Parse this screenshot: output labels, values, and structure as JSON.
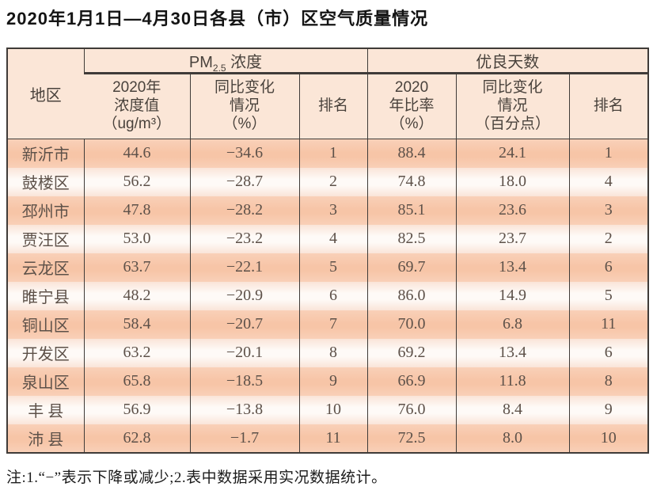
{
  "page": {
    "title": "2020年1月1日—4月30日各县（市）区空气质量情况",
    "footnote": "注:1.“−”表示下降或减少;2.表中数据采用实况数据统计。"
  },
  "colors": {
    "row_salmon": "#f8c9ad",
    "row_light": "#fefaf7",
    "row_light_edge": "#fae4d8",
    "header_bg": "#fbe6d7",
    "border": "#3f3b38",
    "title_text": "#141414",
    "header_text": "#49423c",
    "cell_text": "#5d5149"
  },
  "table": {
    "header": {
      "region": "地区",
      "pm_group": {
        "prefix": "PM",
        "sub": "2.5",
        "suffix": " 浓度"
      },
      "days_group": "优良天数",
      "pm_value": [
        "2020年",
        "浓度值",
        "（ug/m³）"
      ],
      "pm_change": [
        "同比变化",
        "情况",
        "（%）"
      ],
      "pm_rank": "排名",
      "days_rate": [
        "2020",
        "年比率",
        "（%）"
      ],
      "days_change": [
        "同比变化",
        "情况",
        "（百分点）"
      ],
      "days_rank": "排名"
    },
    "rows": [
      {
        "region": "新沂市",
        "pm_value": "44.6",
        "pm_change": "−34.6",
        "pm_rank": "1",
        "days_rate": "88.4",
        "days_change": "24.1",
        "days_rank": "1"
      },
      {
        "region": "鼓楼区",
        "pm_value": "56.2",
        "pm_change": "−28.7",
        "pm_rank": "2",
        "days_rate": "74.8",
        "days_change": "18.0",
        "days_rank": "4"
      },
      {
        "region": "邳州市",
        "pm_value": "47.8",
        "pm_change": "−28.2",
        "pm_rank": "3",
        "days_rate": "85.1",
        "days_change": "23.6",
        "days_rank": "3"
      },
      {
        "region": "贾汪区",
        "pm_value": "53.0",
        "pm_change": "−23.2",
        "pm_rank": "4",
        "days_rate": "82.5",
        "days_change": "23.7",
        "days_rank": "2"
      },
      {
        "region": "云龙区",
        "pm_value": "63.7",
        "pm_change": "−22.1",
        "pm_rank": "5",
        "days_rate": "69.7",
        "days_change": "13.4",
        "days_rank": "6"
      },
      {
        "region": "睢宁县",
        "pm_value": "48.2",
        "pm_change": "−20.9",
        "pm_rank": "6",
        "days_rate": "86.0",
        "days_change": "14.9",
        "days_rank": "5"
      },
      {
        "region": "铜山区",
        "pm_value": "58.4",
        "pm_change": "−20.7",
        "pm_rank": "7",
        "days_rate": "70.0",
        "days_change": "6.8",
        "days_rank": "11"
      },
      {
        "region": "开发区",
        "pm_value": "63.2",
        "pm_change": "−20.1",
        "pm_rank": "8",
        "days_rate": "69.2",
        "days_change": "13.4",
        "days_rank": "6"
      },
      {
        "region": "泉山区",
        "pm_value": "65.8",
        "pm_change": "−18.5",
        "pm_rank": "9",
        "days_rate": "66.9",
        "days_change": "11.8",
        "days_rank": "8"
      },
      {
        "region": "丰 县",
        "pm_value": "56.9",
        "pm_change": "−13.8",
        "pm_rank": "10",
        "days_rate": "76.0",
        "days_change": "8.4",
        "days_rank": "9"
      },
      {
        "region": "沛 县",
        "pm_value": "62.8",
        "pm_change": "−1.7",
        "pm_rank": "11",
        "days_rate": "72.5",
        "days_change": "8.0",
        "days_rank": "10"
      }
    ]
  }
}
